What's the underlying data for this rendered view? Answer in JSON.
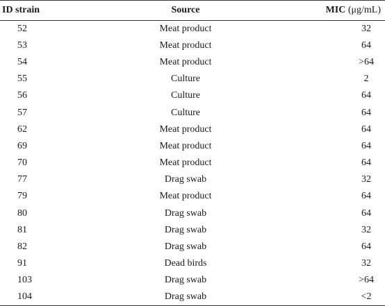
{
  "table": {
    "headers": {
      "id": "ID strain",
      "source": "Source",
      "mic": "MIC",
      "mic_unit": "(μg/mL)"
    },
    "rows": [
      {
        "id": "52",
        "source": "Meat product",
        "mic": "32"
      },
      {
        "id": "53",
        "source": "Meat product",
        "mic": "64"
      },
      {
        "id": "54",
        "source": "Meat product",
        "mic": ">64"
      },
      {
        "id": "55",
        "source": "Culture",
        "mic": "2"
      },
      {
        "id": "56",
        "source": "Culture",
        "mic": "64"
      },
      {
        "id": "57",
        "source": "Culture",
        "mic": "64"
      },
      {
        "id": "62",
        "source": "Meat product",
        "mic": "64"
      },
      {
        "id": "69",
        "source": "Meat product",
        "mic": "64"
      },
      {
        "id": "70",
        "source": "Meat product",
        "mic": "64"
      },
      {
        "id": "77",
        "source": "Drag swab",
        "mic": "32"
      },
      {
        "id": "79",
        "source": "Meat product",
        "mic": "64"
      },
      {
        "id": "80",
        "source": "Drag swab",
        "mic": "64"
      },
      {
        "id": "81",
        "source": "Drag swab",
        "mic": "32"
      },
      {
        "id": "82",
        "source": "Drag swab",
        "mic": "64"
      },
      {
        "id": "91",
        "source": "Dead birds",
        "mic": "32"
      },
      {
        "id": "103",
        "source": "Drag swab",
        "mic": ">64"
      },
      {
        "id": "104",
        "source": "Drag swab",
        "mic": "<2"
      }
    ]
  }
}
